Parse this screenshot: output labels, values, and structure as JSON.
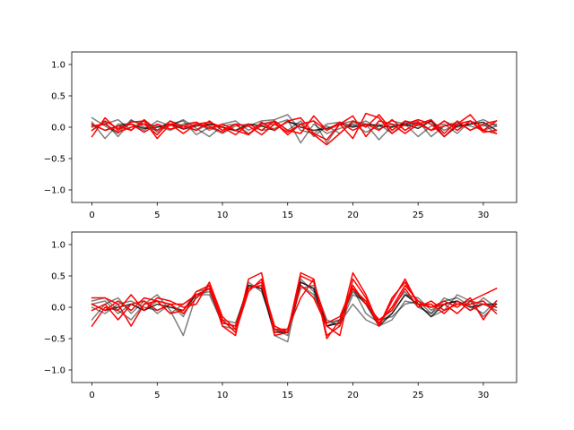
{
  "chart_data": [
    {
      "type": "line",
      "title": "",
      "xlabel": "",
      "ylabel": "",
      "xlim": [
        -1.55,
        32.55
      ],
      "ylim": [
        -1.2,
        1.2
      ],
      "xticks": [
        0,
        5,
        10,
        15,
        20,
        25,
        30
      ],
      "xtick_labels": [
        "0",
        "5",
        "10",
        "15",
        "20",
        "25",
        "30"
      ],
      "yticks": [
        -1.0,
        -0.5,
        0.0,
        0.5,
        1.0
      ],
      "ytick_labels": [
        "−1.0",
        "−0.5",
        "0.0",
        "0.5",
        "1.0"
      ],
      "grid": false,
      "x": [
        0,
        1,
        2,
        3,
        4,
        5,
        6,
        7,
        8,
        9,
        10,
        11,
        12,
        13,
        14,
        15,
        16,
        17,
        18,
        19,
        20,
        21,
        22,
        23,
        24,
        25,
        26,
        27,
        28,
        29,
        30,
        31
      ],
      "series": [
        {
          "color": "#000000",
          "opacity": 0.5,
          "values": [
            0.15,
            0.02,
            -0.1,
            0.12,
            0.0,
            -0.05,
            0.1,
            0.02,
            -0.05,
            0.05,
            0.0,
            -0.06,
            0.02,
            0.1,
            0.12,
            0.2,
            -0.05,
            -0.1,
            0.05,
            0.08,
            0.02,
            0.1,
            -0.03,
            0.05,
            0.02,
            0.08,
            -0.05,
            0.1,
            0.0,
            0.05,
            0.12,
            0.02
          ]
        },
        {
          "color": "#000000",
          "opacity": 0.5,
          "values": [
            0.08,
            -0.18,
            0.05,
            0.05,
            -0.05,
            0.1,
            0.02,
            0.12,
            -0.02,
            -0.15,
            0.02,
            0.05,
            -0.1,
            0.02,
            0.05,
            0.12,
            -0.25,
            0.05,
            -0.1,
            -0.02,
            0.05,
            -0.08,
            0.02,
            0.1,
            0.05,
            -0.15,
            0.02,
            0.05,
            -0.1,
            0.1,
            0.02,
            0.05
          ]
        },
        {
          "color": "#000000",
          "opacity": 0.5,
          "values": [
            0.0,
            0.05,
            0.12,
            -0.05,
            0.1,
            -0.08,
            0.05,
            0.1,
            -0.12,
            0.0,
            -0.1,
            0.02,
            0.05,
            -0.05,
            -0.02,
            0.08,
            0.05,
            0.1,
            -0.25,
            0.05,
            0.1,
            0.05,
            -0.2,
            0.02,
            0.05,
            0.1,
            -0.15,
            0.02,
            0.08,
            -0.05,
            0.05,
            -0.1
          ]
        },
        {
          "color": "#000000",
          "opacity": 0.5,
          "values": [
            -0.05,
            0.08,
            -0.15,
            0.1,
            0.05,
            0.02,
            -0.05,
            0.05,
            0.08,
            -0.05,
            0.05,
            0.1,
            -0.05,
            0.05,
            0.1,
            -0.05,
            0.1,
            -0.15,
            0.02,
            -0.1,
            0.08,
            0.02,
            0.05,
            -0.1,
            0.08,
            0.02,
            0.1,
            -0.05,
            0.05,
            0.02,
            -0.05,
            0.02
          ]
        },
        {
          "color": "#000000",
          "opacity": 0.8,
          "values": [
            0.05,
            -0.05,
            0.02,
            0.05,
            -0.02,
            0.0,
            0.05,
            -0.03,
            0.02,
            0.05,
            0.0,
            -0.05,
            0.05,
            0.02,
            -0.05,
            0.1,
            0.0,
            -0.05,
            -0.02,
            0.05,
            0.0,
            0.05,
            0.02,
            0.0,
            0.05,
            -0.02,
            0.1,
            -0.15,
            0.02,
            0.05,
            0.08,
            -0.05
          ]
        },
        {
          "color": "#ff0000",
          "opacity": 1,
          "values": [
            -0.15,
            0.15,
            -0.05,
            0.08,
            0.1,
            -0.18,
            0.05,
            -0.1,
            0.05,
            0.08,
            0.0,
            -0.12,
            0.05,
            -0.05,
            0.1,
            -0.05,
            -0.1,
            0.18,
            -0.05,
            0.05,
            -0.18,
            0.22,
            0.15,
            -0.1,
            0.05,
            0.12,
            0.05,
            -0.15,
            0.05,
            0.2,
            -0.05,
            -0.1
          ]
        },
        {
          "color": "#ff0000",
          "opacity": 1,
          "values": [
            0.05,
            -0.05,
            0.02,
            -0.05,
            0.12,
            -0.05,
            0.05,
            0.02,
            -0.05,
            0.1,
            -0.05,
            0.05,
            -0.12,
            0.08,
            -0.05,
            0.1,
            0.15,
            -0.1,
            -0.2,
            0.05,
            0.18,
            -0.15,
            0.1,
            0.05,
            -0.1,
            0.05,
            0.12,
            -0.1,
            0.1,
            -0.05,
            0.05,
            0.1
          ]
        },
        {
          "color": "#ff0000",
          "opacity": 1,
          "values": [
            0.02,
            0.05,
            -0.08,
            0.0,
            0.05,
            -0.12,
            0.1,
            -0.02,
            0.05,
            0.02,
            -0.08,
            0.05,
            0.02,
            -0.12,
            0.05,
            -0.08,
            0.05,
            -0.12,
            -0.28,
            -0.1,
            0.1,
            0.0,
            0.2,
            -0.05,
            0.1,
            0.05,
            -0.05,
            0.1,
            -0.05,
            0.1,
            -0.08,
            -0.05
          ]
        },
        {
          "color": "#ff0000",
          "opacity": 1,
          "values": [
            -0.05,
            0.1,
            -0.02,
            0.05,
            -0.08,
            0.05,
            -0.03,
            0.02,
            0.08,
            -0.02,
            0.05,
            -0.05,
            -0.12,
            0.05,
            0.08,
            -0.12,
            0.05,
            0.1,
            -0.05,
            0.08,
            -0.05,
            0.05,
            -0.05,
            0.12,
            -0.05,
            0.08,
            -0.05,
            0.02,
            0.05,
            0.1,
            -0.05,
            0.1
          ]
        }
      ]
    },
    {
      "type": "line",
      "title": "",
      "xlabel": "",
      "ylabel": "",
      "xlim": [
        -1.55,
        32.55
      ],
      "ylim": [
        -1.2,
        1.2
      ],
      "xticks": [
        0,
        5,
        10,
        15,
        20,
        25,
        30
      ],
      "xtick_labels": [
        "0",
        "5",
        "10",
        "15",
        "20",
        "25",
        "30"
      ],
      "yticks": [
        -1.0,
        -0.5,
        0.0,
        0.5,
        1.0
      ],
      "ytick_labels": [
        "−1.0",
        "−0.5",
        "0.0",
        "0.5",
        "1.0"
      ],
      "grid": false,
      "x": [
        0,
        1,
        2,
        3,
        4,
        5,
        6,
        7,
        8,
        9,
        10,
        11,
        12,
        13,
        14,
        15,
        16,
        17,
        18,
        19,
        20,
        21,
        22,
        23,
        24,
        25,
        26,
        27,
        28,
        29,
        30,
        31
      ],
      "series": [
        {
          "color": "#000000",
          "opacity": 0.5,
          "values": [
            0.1,
            0.15,
            -0.05,
            -0.2,
            0.05,
            0.2,
            -0.05,
            -0.45,
            0.2,
            0.25,
            -0.2,
            -0.4,
            0.3,
            0.35,
            -0.45,
            -0.55,
            0.4,
            0.3,
            -0.3,
            -0.25,
            0.05,
            -0.2,
            -0.3,
            -0.2,
            0.1,
            0.05,
            -0.15,
            -0.05,
            0.2,
            0.1,
            -0.15,
            0.05
          ]
        },
        {
          "color": "#000000",
          "opacity": 0.5,
          "values": [
            -0.2,
            0.05,
            0.15,
            -0.1,
            0.1,
            -0.1,
            0.05,
            -0.15,
            0.25,
            0.3,
            -0.3,
            -0.35,
            0.4,
            0.25,
            -0.35,
            -0.4,
            0.35,
            0.2,
            -0.25,
            -0.2,
            0.3,
            -0.1,
            -0.25,
            -0.1,
            0.2,
            0.15,
            -0.05,
            0.1,
            0.15,
            0.02,
            -0.1,
            0.1
          ]
        },
        {
          "color": "#000000",
          "opacity": 0.5,
          "values": [
            0.05,
            0.1,
            -0.1,
            0.05,
            -0.05,
            0.1,
            -0.1,
            0.05,
            0.2,
            0.2,
            -0.25,
            -0.3,
            0.35,
            0.3,
            -0.4,
            -0.35,
            0.3,
            0.35,
            -0.2,
            -0.3,
            0.2,
            0.1,
            -0.25,
            0.0,
            0.25,
            0.0,
            -0.1,
            0.15,
            0.05,
            0.1,
            0.05,
            -0.05
          ]
        },
        {
          "color": "#000000",
          "opacity": 0.5,
          "values": [
            0.0,
            -0.1,
            0.05,
            0.1,
            0.0,
            -0.05,
            0.05,
            -0.1,
            0.15,
            0.3,
            -0.2,
            -0.25,
            0.3,
            0.4,
            -0.35,
            -0.45,
            0.45,
            0.25,
            -0.3,
            -0.2,
            0.25,
            0.05,
            -0.2,
            -0.15,
            0.05,
            0.1,
            -0.1,
            0.05,
            0.1,
            -0.05,
            0.15,
            0.0
          ]
        },
        {
          "color": "#000000",
          "opacity": 0.8,
          "values": [
            0.05,
            -0.05,
            0.0,
            0.05,
            -0.05,
            0.05,
            0.0,
            -0.05,
            0.2,
            0.3,
            -0.25,
            -0.3,
            0.35,
            0.3,
            -0.4,
            -0.4,
            0.4,
            0.3,
            -0.3,
            -0.25,
            0.3,
            0.05,
            -0.3,
            -0.1,
            0.2,
            0.05,
            -0.15,
            0.05,
            0.1,
            0.0,
            0.05,
            0.05
          ]
        },
        {
          "color": "#ff0000",
          "opacity": 1,
          "values": [
            0.15,
            0.15,
            0.05,
            -0.3,
            0.05,
            0.1,
            0.05,
            -0.1,
            0.15,
            0.35,
            -0.3,
            -0.45,
            0.45,
            0.55,
            -0.45,
            -0.4,
            0.55,
            0.45,
            -0.45,
            -0.3,
            0.55,
            0.2,
            -0.3,
            0.1,
            0.45,
            0.05,
            0.0,
            0.05,
            -0.1,
            0.1,
            0.2,
            0.3
          ]
        },
        {
          "color": "#ff0000",
          "opacity": 1,
          "values": [
            -0.3,
            0.0,
            -0.05,
            0.2,
            -0.05,
            0.15,
            0.1,
            0.0,
            0.05,
            0.4,
            -0.15,
            -0.35,
            0.3,
            0.35,
            -0.35,
            -0.35,
            0.15,
            0.45,
            -0.5,
            -0.2,
            0.3,
            0.1,
            -0.3,
            0.15,
            0.4,
            0.05,
            0.05,
            -0.1,
            0.1,
            -0.05,
            0.05,
            0.0
          ]
        },
        {
          "color": "#ff0000",
          "opacity": 1,
          "values": [
            0.05,
            -0.05,
            0.1,
            -0.05,
            0.15,
            0.1,
            -0.1,
            -0.05,
            0.25,
            0.35,
            -0.2,
            -0.4,
            0.25,
            0.45,
            -0.4,
            -0.35,
            0.35,
            0.15,
            -0.3,
            -0.45,
            0.45,
            0.15,
            -0.25,
            0.0,
            0.35,
            0.1,
            0.0,
            0.1,
            0.0,
            0.15,
            -0.2,
            0.1
          ]
        },
        {
          "color": "#ff0000",
          "opacity": 1,
          "values": [
            -0.05,
            0.05,
            -0.2,
            0.05,
            0.1,
            -0.05,
            0.05,
            0.05,
            0.2,
            0.3,
            -0.25,
            -0.3,
            0.3,
            0.4,
            -0.3,
            -0.4,
            0.5,
            0.4,
            -0.25,
            -0.15,
            0.35,
            0.05,
            -0.2,
            -0.05,
            0.3,
            0.0,
            0.1,
            -0.05,
            0.05,
            0.05,
            0.1,
            -0.1
          ]
        }
      ]
    }
  ]
}
